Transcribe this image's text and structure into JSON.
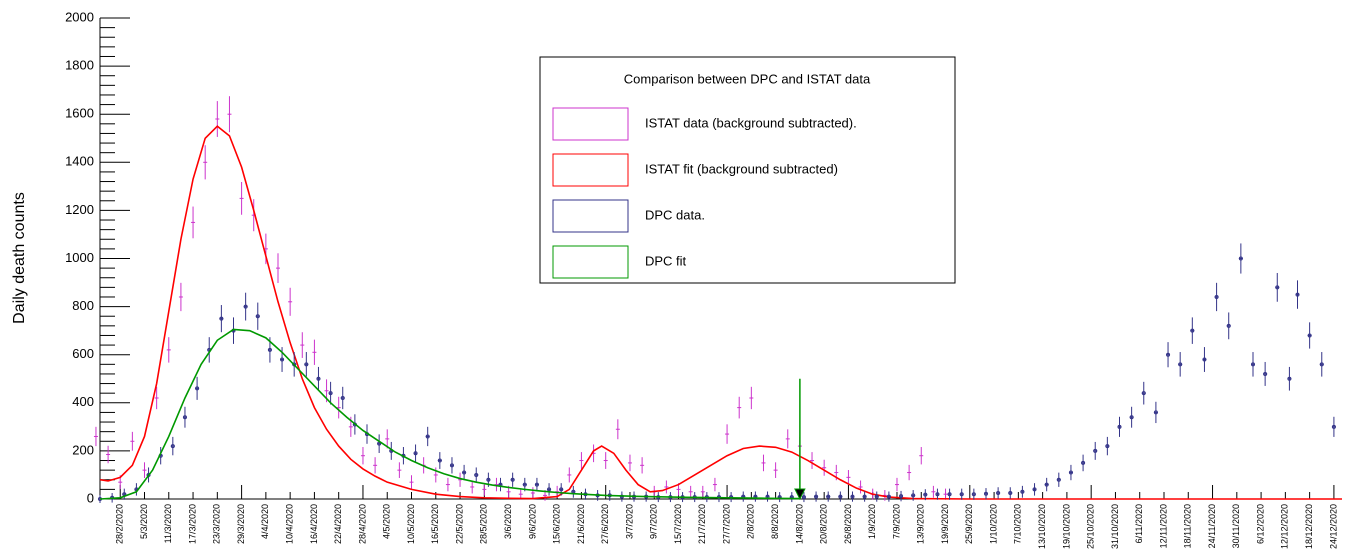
{
  "chart_data": {
    "type": "scatter",
    "ylabel": "Daily death counts",
    "xlim": [
      -5,
      302
    ],
    "ylim": [
      0,
      2000
    ],
    "yticks": [
      0,
      200,
      400,
      600,
      800,
      1000,
      1200,
      1400,
      1600,
      1800,
      2000
    ],
    "xticks": [
      {
        "value": 0,
        "label": "28/2/2020"
      },
      {
        "value": 6,
        "label": "5/3/2020"
      },
      {
        "value": 12,
        "label": "11/3/2020"
      },
      {
        "value": 18,
        "label": "17/3/2020"
      },
      {
        "value": 24,
        "label": "23/3/2020"
      },
      {
        "value": 30,
        "label": "29/3/2020"
      },
      {
        "value": 36,
        "label": "4/4/2020"
      },
      {
        "value": 42,
        "label": "10/4/2020"
      },
      {
        "value": 48,
        "label": "16/4/2020"
      },
      {
        "value": 54,
        "label": "22/4/2020"
      },
      {
        "value": 60,
        "label": "28/4/2020"
      },
      {
        "value": 66,
        "label": "4/5/2020"
      },
      {
        "value": 72,
        "label": "10/5/2020"
      },
      {
        "value": 78,
        "label": "16/5/2020"
      },
      {
        "value": 84,
        "label": "22/5/2020"
      },
      {
        "value": 90,
        "label": "28/5/2020"
      },
      {
        "value": 96,
        "label": "3/6/2020"
      },
      {
        "value": 102,
        "label": "9/6/2020"
      },
      {
        "value": 108,
        "label": "15/6/2020"
      },
      {
        "value": 114,
        "label": "21/6/2020"
      },
      {
        "value": 120,
        "label": "27/6/2020"
      },
      {
        "value": 126,
        "label": "3/7/2020"
      },
      {
        "value": 132,
        "label": "9/7/2020"
      },
      {
        "value": 138,
        "label": "15/7/2020"
      },
      {
        "value": 144,
        "label": "21/7/2020"
      },
      {
        "value": 150,
        "label": "27/7/2020"
      },
      {
        "value": 156,
        "label": "2/8/2020"
      },
      {
        "value": 162,
        "label": "8/8/2020"
      },
      {
        "value": 168,
        "label": "14/8/2020"
      },
      {
        "value": 174,
        "label": "20/8/2020"
      },
      {
        "value": 180,
        "label": "26/8/2020"
      },
      {
        "value": 186,
        "label": "1/9/2020"
      },
      {
        "value": 192,
        "label": "7/9/2020"
      },
      {
        "value": 198,
        "label": "13/9/2020"
      },
      {
        "value": 204,
        "label": "19/9/2020"
      },
      {
        "value": 210,
        "label": "25/9/2020"
      },
      {
        "value": 216,
        "label": "1/10/2020"
      },
      {
        "value": 222,
        "label": "7/10/2020"
      },
      {
        "value": 228,
        "label": "13/10/2020"
      },
      {
        "value": 234,
        "label": "19/10/2020"
      },
      {
        "value": 240,
        "label": "25/10/2020"
      },
      {
        "value": 246,
        "label": "31/10/2020"
      },
      {
        "value": 252,
        "label": "6/11/2020"
      },
      {
        "value": 258,
        "label": "12/11/2020"
      },
      {
        "value": 264,
        "label": "18/11/2020"
      },
      {
        "value": 270,
        "label": "24/11/2020"
      },
      {
        "value": 276,
        "label": "30/11/2020"
      },
      {
        "value": 282,
        "label": "6/12/2020"
      },
      {
        "value": 288,
        "label": "12/12/2020"
      },
      {
        "value": 294,
        "label": "18/12/2020"
      },
      {
        "value": 300,
        "label": "24/12/2020"
      }
    ],
    "legend_title": "Comparison between DPC and ISTAT data",
    "series": [
      {
        "name": "ISTAT data (background subtracted).",
        "color": "#cc33cc",
        "style": "markers",
        "x": [
          -6,
          -3,
          0,
          3,
          6,
          9,
          12,
          15,
          18,
          21,
          24,
          27,
          30,
          33,
          36,
          39,
          42,
          45,
          48,
          51,
          54,
          57,
          60,
          63,
          66,
          69,
          72,
          75,
          78,
          81,
          84,
          87,
          90,
          93,
          96,
          99,
          102,
          105,
          108,
          111,
          114,
          117,
          120,
          123,
          126,
          129,
          132,
          135,
          138,
          141,
          144,
          147,
          150,
          153,
          156,
          159,
          162,
          165,
          168,
          171,
          174,
          177,
          180,
          183,
          186,
          189,
          192,
          195,
          198,
          201,
          204
        ],
        "values": [
          260,
          185,
          70,
          240,
          120,
          420,
          620,
          840,
          1150,
          1400,
          1580,
          1600,
          1250,
          1180,
          1040,
          960,
          820,
          640,
          610,
          450,
          380,
          300,
          180,
          140,
          250,
          120,
          70,
          140,
          100,
          60,
          80,
          50,
          40,
          60,
          30,
          20,
          25,
          15,
          30,
          100,
          160,
          190,
          160,
          290,
          150,
          140,
          30,
          50,
          40,
          30,
          30,
          60,
          270,
          380,
          420,
          150,
          120,
          250,
          220,
          160,
          130,
          110,
          90,
          50,
          20,
          15,
          60,
          110,
          180,
          30,
          20
        ]
      },
      {
        "name": "ISTAT fit (background subtracted)",
        "color": "#ff0000",
        "style": "line",
        "x": [
          -5,
          -3,
          0,
          3,
          6,
          9,
          12,
          15,
          18,
          21,
          24,
          27,
          30,
          33,
          36,
          39,
          42,
          45,
          48,
          51,
          54,
          57,
          60,
          63,
          66,
          72,
          78,
          84,
          90,
          96,
          102,
          108,
          111,
          114,
          117,
          119,
          122,
          125,
          128,
          131,
          134,
          138,
          142,
          146,
          150,
          154,
          158,
          162,
          166,
          170,
          174,
          178,
          182,
          186,
          190,
          196,
          210,
          240,
          270,
          302
        ],
        "values": [
          80,
          75,
          90,
          140,
          260,
          480,
          780,
          1080,
          1330,
          1500,
          1550,
          1510,
          1380,
          1200,
          1010,
          820,
          650,
          500,
          380,
          290,
          220,
          165,
          125,
          95,
          70,
          40,
          20,
          10,
          5,
          3,
          2,
          10,
          40,
          120,
          200,
          220,
          190,
          120,
          60,
          30,
          35,
          60,
          100,
          140,
          180,
          210,
          220,
          215,
          195,
          160,
          120,
          80,
          45,
          20,
          8,
          2,
          0,
          0,
          0,
          0
        ]
      },
      {
        "name": "DPC data.",
        "color": "#333388",
        "style": "markers",
        "x": [
          -5,
          -2,
          1,
          4,
          7,
          10,
          13,
          16,
          19,
          22,
          25,
          28,
          31,
          34,
          37,
          40,
          43,
          46,
          49,
          52,
          55,
          58,
          61,
          64,
          67,
          70,
          73,
          76,
          79,
          82,
          85,
          88,
          91,
          94,
          97,
          100,
          103,
          106,
          109,
          112,
          115,
          118,
          121,
          124,
          127,
          130,
          133,
          136,
          139,
          142,
          145,
          148,
          151,
          154,
          157,
          160,
          163,
          166,
          169,
          172,
          175,
          178,
          181,
          184,
          187,
          190,
          193,
          196,
          199,
          202,
          205,
          208,
          211,
          214,
          217,
          220,
          223,
          226,
          229,
          232,
          235,
          238,
          241,
          244,
          247,
          250,
          253,
          256,
          259,
          262,
          265,
          268,
          271,
          274,
          277,
          280,
          283,
          286,
          289,
          291,
          294,
          297,
          300
        ],
        "values": [
          0,
          5,
          20,
          40,
          100,
          180,
          220,
          340,
          460,
          620,
          750,
          700,
          800,
          760,
          620,
          580,
          560,
          560,
          500,
          440,
          420,
          310,
          270,
          230,
          200,
          180,
          190,
          260,
          160,
          140,
          110,
          100,
          80,
          60,
          80,
          60,
          60,
          40,
          40,
          30,
          20,
          15,
          15,
          10,
          10,
          10,
          8,
          8,
          8,
          8,
          8,
          8,
          8,
          10,
          10,
          10,
          8,
          8,
          8,
          10,
          10,
          10,
          10,
          10,
          10,
          10,
          12,
          15,
          18,
          20,
          20,
          20,
          20,
          22,
          25,
          25,
          30,
          40,
          60,
          80,
          110,
          150,
          200,
          220,
          300,
          340,
          440,
          360,
          600,
          560,
          700,
          580,
          840,
          720,
          1000,
          560,
          520,
          880,
          500,
          850,
          680,
          560,
          300
        ]
      },
      {
        "name": "DPC fit",
        "color": "#009900",
        "style": "line",
        "x": [
          -5,
          0,
          4,
          8,
          12,
          16,
          20,
          24,
          28,
          32,
          36,
          40,
          44,
          48,
          52,
          56,
          60,
          64,
          68,
          72,
          76,
          80,
          84,
          88,
          92,
          96,
          100,
          104,
          108,
          112,
          120,
          130,
          140,
          150,
          160,
          168
        ],
        "values": [
          0,
          5,
          30,
          120,
          260,
          420,
          560,
          660,
          705,
          700,
          670,
          610,
          540,
          470,
          400,
          340,
          285,
          240,
          195,
          160,
          130,
          105,
          85,
          70,
          58,
          48,
          40,
          33,
          27,
          22,
          15,
          10,
          7,
          5,
          3,
          2
        ]
      }
    ],
    "arrow": {
      "x": 168,
      "y_from": 500,
      "y_to": 0,
      "color": "#009900"
    }
  }
}
